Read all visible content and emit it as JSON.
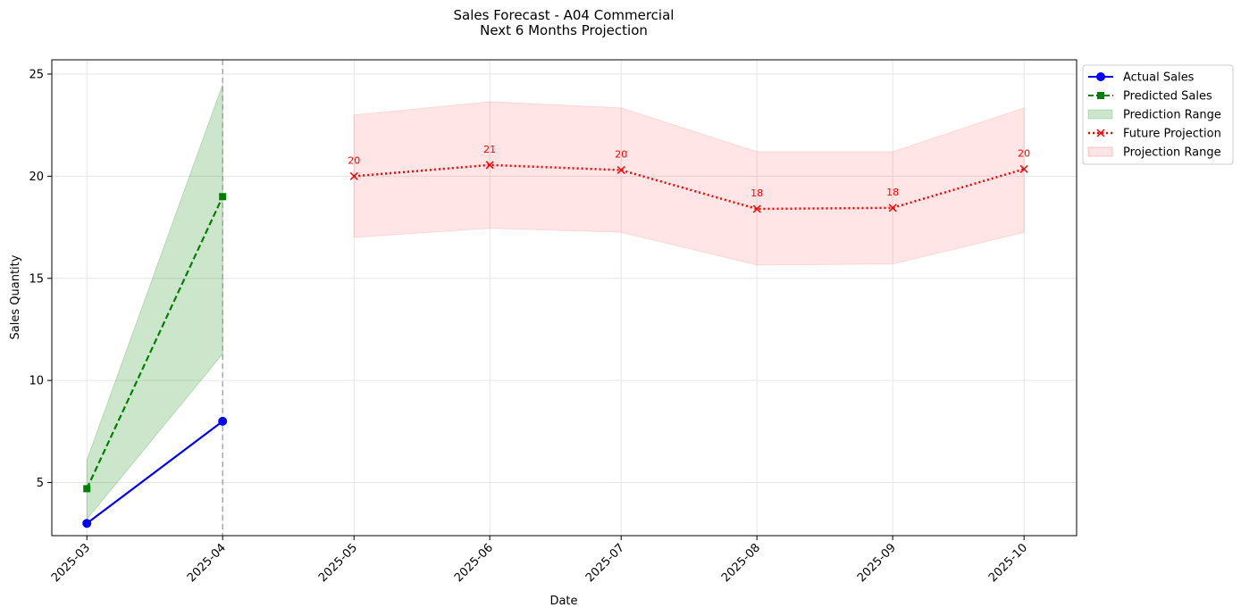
{
  "chart_data": {
    "type": "line",
    "title": "Sales Forecast - A04 Commercial",
    "subtitle": "Next 6 Months Projection",
    "xlabel": "Date",
    "ylabel": "Sales Quantity",
    "x_ticks": [
      "2025-03",
      "2025-04",
      "2025-05",
      "2025-06",
      "2025-07",
      "2025-08",
      "2025-09",
      "2025-10"
    ],
    "y_ticks": [
      5,
      10,
      15,
      20,
      25
    ],
    "ylim": [
      2.4,
      25.7
    ],
    "xlim": [
      "2025-02-21",
      "2025-10-13"
    ],
    "grid": true,
    "legend_position": "outside-top-right",
    "divider_date": "2025-04",
    "series": [
      {
        "name": "Actual Sales",
        "style": "solid",
        "marker": "circle",
        "color": "#0000ff",
        "x": [
          "2025-03",
          "2025-04"
        ],
        "values": [
          3.0,
          8.0
        ]
      },
      {
        "name": "Predicted Sales",
        "style": "dashed",
        "marker": "square",
        "color": "#008000",
        "x": [
          "2025-03",
          "2025-04"
        ],
        "values": [
          4.7,
          19.0
        ]
      },
      {
        "name": "Prediction Range",
        "style": "band",
        "color": "#008000",
        "x": [
          "2025-03",
          "2025-04"
        ],
        "lower": [
          3.2,
          11.3
        ],
        "upper": [
          6.1,
          24.5
        ]
      },
      {
        "name": "Future Projection",
        "style": "dotted",
        "marker": "x",
        "color": "#ff0000",
        "x": [
          "2025-05",
          "2025-06",
          "2025-07",
          "2025-08",
          "2025-09",
          "2025-10"
        ],
        "values": [
          20.0,
          20.55,
          20.3,
          18.4,
          18.45,
          20.35
        ],
        "labels": [
          "20",
          "21",
          "20",
          "18",
          "18",
          "20"
        ]
      },
      {
        "name": "Projection Range",
        "style": "band",
        "color": "#ff0000",
        "x": [
          "2025-05",
          "2025-06",
          "2025-07",
          "2025-08",
          "2025-09",
          "2025-10"
        ],
        "lower": [
          17.0,
          17.45,
          17.25,
          15.65,
          15.7,
          17.25
        ],
        "upper": [
          23.0,
          23.65,
          23.35,
          21.2,
          21.2,
          23.35
        ]
      }
    ]
  }
}
